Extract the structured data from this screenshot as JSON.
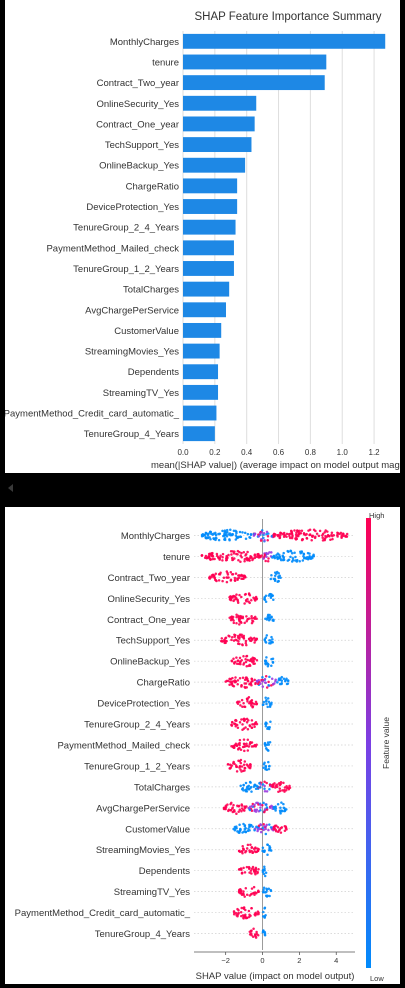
{
  "chart_data": [
    {
      "type": "bar",
      "orientation": "horizontal",
      "title": "SHAP Feature Importance Summary",
      "xlabel": "mean(|SHAP value|) (average impact on model output magni",
      "xlim": [
        0,
        1.3
      ],
      "xticks": [
        "0.0",
        "0.2",
        "0.4",
        "0.6",
        "0.8",
        "1.0",
        "1.2"
      ],
      "grid": true,
      "bar_color": "#1E88E5",
      "categories": [
        "MonthlyCharges",
        "tenure",
        "Contract_Two_year",
        "OnlineSecurity_Yes",
        "Contract_One_year",
        "TechSupport_Yes",
        "OnlineBackup_Yes",
        "ChargeRatio",
        "DeviceProtection_Yes",
        "TenureGroup_2_4_Years",
        "PaymentMethod_Mailed_check",
        "TenureGroup_1_2_Years",
        "TotalCharges",
        "AvgChargePerService",
        "CustomerValue",
        "StreamingMovies_Yes",
        "Dependents",
        "StreamingTV_Yes",
        "PaymentMethod_Credit_card_automatic_",
        "TenureGroup_4_Years"
      ],
      "values": [
        1.27,
        0.9,
        0.89,
        0.46,
        0.45,
        0.43,
        0.39,
        0.34,
        0.34,
        0.33,
        0.32,
        0.32,
        0.29,
        0.27,
        0.24,
        0.23,
        0.22,
        0.22,
        0.21,
        0.2
      ]
    },
    {
      "type": "scatter",
      "subtype": "beeswarm",
      "xlabel": "SHAP value (impact on model output)",
      "xlim": [
        -3.5,
        4.8
      ],
      "xticks": [
        -2,
        0,
        2,
        4
      ],
      "colorbar": {
        "label": "Feature value",
        "high": "High",
        "low": "Low",
        "high_color": "#FF0052",
        "low_color": "#008BFB"
      },
      "categories": [
        "MonthlyCharges",
        "tenure",
        "Contract_Two_year",
        "OnlineSecurity_Yes",
        "Contract_One_year",
        "TechSupport_Yes",
        "OnlineBackup_Yes",
        "ChargeRatio",
        "DeviceProtection_Yes",
        "TenureGroup_2_4_Years",
        "PaymentMethod_Mailed_check",
        "TenureGroup_1_2_Years",
        "TotalCharges",
        "AvgChargePerService",
        "CustomerValue",
        "StreamingMovies_Yes",
        "Dependents",
        "StreamingTV_Yes",
        "PaymentMethod_Credit_card_automatic_",
        "TenureGroup_4_Years"
      ],
      "series": [
        {
          "clusters": [
            {
              "x": [
                -3.3,
                -0.5
              ],
              "color": "blue"
            },
            {
              "x": [
                -0.5,
                0.6
              ],
              "color": "mixed"
            },
            {
              "x": [
                0.6,
                4.6
              ],
              "color": "pink"
            }
          ]
        },
        {
          "clusters": [
            {
              "x": [
                -3.3,
                0.0
              ],
              "color": "pink"
            },
            {
              "x": [
                0.0,
                0.6
              ],
              "color": "mixed"
            },
            {
              "x": [
                0.6,
                2.8
              ],
              "color": "blue"
            }
          ]
        },
        {
          "clusters": [
            {
              "x": [
                -2.9,
                -0.9
              ],
              "color": "pink"
            },
            {
              "x": [
                0.4,
                1.0
              ],
              "color": "blue"
            }
          ]
        },
        {
          "clusters": [
            {
              "x": [
                -1.8,
                -0.3
              ],
              "color": "pink"
            },
            {
              "x": [
                0.1,
                0.6
              ],
              "color": "blue"
            }
          ]
        },
        {
          "clusters": [
            {
              "x": [
                -1.8,
                -0.3
              ],
              "color": "pink"
            },
            {
              "x": [
                0.1,
                0.6
              ],
              "color": "blue"
            }
          ]
        },
        {
          "clusters": [
            {
              "x": [
                -2.3,
                -0.3
              ],
              "color": "pink"
            },
            {
              "x": [
                0.1,
                0.6
              ],
              "color": "blue"
            }
          ]
        },
        {
          "clusters": [
            {
              "x": [
                -1.7,
                -0.3
              ],
              "color": "pink"
            },
            {
              "x": [
                0.1,
                0.6
              ],
              "color": "blue"
            }
          ]
        },
        {
          "clusters": [
            {
              "x": [
                -2.0,
                -0.3
              ],
              "color": "pink"
            },
            {
              "x": [
                -0.3,
                0.8
              ],
              "color": "mixed"
            },
            {
              "x": [
                0.8,
                1.4
              ],
              "color": "blue"
            }
          ]
        },
        {
          "clusters": [
            {
              "x": [
                -1.4,
                -0.3
              ],
              "color": "pink"
            },
            {
              "x": [
                0.0,
                0.5
              ],
              "color": "blue"
            }
          ]
        },
        {
          "clusters": [
            {
              "x": [
                -1.7,
                -0.3
              ],
              "color": "pink"
            },
            {
              "x": [
                0.1,
                0.5
              ],
              "color": "blue"
            }
          ]
        },
        {
          "clusters": [
            {
              "x": [
                -1.7,
                -0.3
              ],
              "color": "pink"
            },
            {
              "x": [
                0.1,
                0.5
              ],
              "color": "blue"
            }
          ]
        },
        {
          "clusters": [
            {
              "x": [
                -1.9,
                -0.6
              ],
              "color": "pink"
            },
            {
              "x": [
                0.0,
                0.4
              ],
              "color": "blue"
            }
          ]
        },
        {
          "clusters": [
            {
              "x": [
                -1.2,
                -0.3
              ],
              "color": "blue"
            },
            {
              "x": [
                -0.3,
                0.5
              ],
              "color": "mixed"
            },
            {
              "x": [
                0.5,
                1.5
              ],
              "color": "pink"
            }
          ]
        },
        {
          "clusters": [
            {
              "x": [
                -2.1,
                -0.8
              ],
              "color": "pink"
            },
            {
              "x": [
                -0.8,
                0.6
              ],
              "color": "mixed"
            },
            {
              "x": [
                0.6,
                1.3
              ],
              "color": "blue"
            }
          ]
        },
        {
          "clusters": [
            {
              "x": [
                -1.6,
                -0.4
              ],
              "color": "blue"
            },
            {
              "x": [
                -0.4,
                0.6
              ],
              "color": "mixed"
            },
            {
              "x": [
                0.6,
                1.3
              ],
              "color": "pink"
            }
          ]
        },
        {
          "clusters": [
            {
              "x": [
                -1.3,
                -0.2
              ],
              "color": "pink"
            },
            {
              "x": [
                0.0,
                0.5
              ],
              "color": "blue"
            }
          ]
        },
        {
          "clusters": [
            {
              "x": [
                -1.3,
                -0.2
              ],
              "color": "pink"
            },
            {
              "x": [
                0.0,
                0.3
              ],
              "color": "blue"
            }
          ]
        },
        {
          "clusters": [
            {
              "x": [
                -1.3,
                -0.2
              ],
              "color": "pink"
            },
            {
              "x": [
                0.0,
                0.5
              ],
              "color": "blue"
            }
          ]
        },
        {
          "clusters": [
            {
              "x": [
                -1.6,
                -0.2
              ],
              "color": "pink"
            },
            {
              "x": [
                0.0,
                0.2
              ],
              "color": "blue"
            }
          ]
        },
        {
          "clusters": [
            {
              "x": [
                -0.7,
                -0.2
              ],
              "color": "pink"
            },
            {
              "x": [
                0.0,
                0.2
              ],
              "color": "blue"
            }
          ]
        }
      ]
    }
  ]
}
